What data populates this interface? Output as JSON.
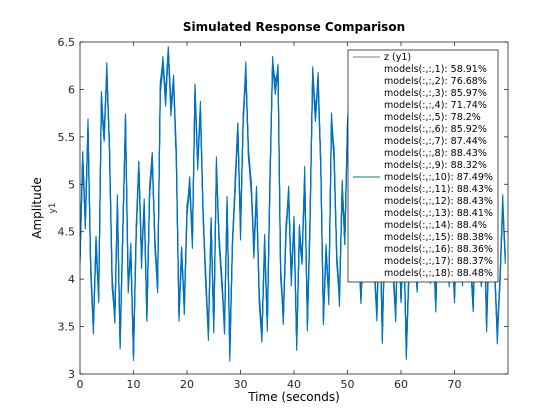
{
  "chart_data": {
    "type": "line",
    "title": "Simulated Response Comparison",
    "xlabel": "Time (seconds)",
    "ylabel": "Amplitude",
    "channel_label": "y1",
    "xlim": [
      0,
      80
    ],
    "ylim": [
      3,
      6.5
    ],
    "xticks": [
      "0",
      "10",
      "20",
      "30",
      "40",
      "50",
      "60",
      "70"
    ],
    "xtick_values": [
      0,
      10,
      20,
      30,
      40,
      50,
      60,
      70
    ],
    "yticks": [
      "3",
      "3.5",
      "4",
      "4.5",
      "5",
      "5.5",
      "6",
      "6.5"
    ],
    "ytick_values": [
      3,
      3.5,
      4,
      4.5,
      5,
      5.5,
      6,
      6.5
    ],
    "grid": false,
    "legend_position": "top-right",
    "colors": {
      "measured": "#808080",
      "models": "#0072BD",
      "highlight": "#007A7A"
    },
    "measured_name": "z (y1)",
    "series": [
      {
        "name": "models(:,:,1): 58.91%"
      },
      {
        "name": "models(:,:,2): 76.68%"
      },
      {
        "name": "models(:,:,3): 85.97%"
      },
      {
        "name": "models(:,:,4): 71.74%"
      },
      {
        "name": "models(:,:,5): 78.2%"
      },
      {
        "name": "models(:,:,6): 85.92%"
      },
      {
        "name": "models(:,:,7): 87.44%"
      },
      {
        "name": "models(:,:,8): 88.43%"
      },
      {
        "name": "models(:,:,9): 88.32%"
      },
      {
        "name": "models(:,:,10): 87.49%"
      },
      {
        "name": "models(:,:,11): 88.43%"
      },
      {
        "name": "models(:,:,12): 88.43%"
      },
      {
        "name": "models(:,:,13): 88.41%"
      },
      {
        "name": "models(:,:,14): 88.4%"
      },
      {
        "name": "models(:,:,15): 88.38%"
      },
      {
        "name": "models(:,:,16): 88.36%"
      },
      {
        "name": "models(:,:,17): 88.37%"
      },
      {
        "name": "models(:,:,18): 88.48%"
      }
    ],
    "highlight_index": 9,
    "response_x": [
      0,
      0.5,
      1,
      1.5,
      2,
      2.5,
      3,
      3.5,
      4,
      4.5,
      5,
      5.5,
      6,
      6.5,
      7,
      7.5,
      8,
      8.5,
      9,
      9.5,
      10,
      10.5,
      11,
      11.5,
      12,
      12.5,
      13,
      13.5,
      14,
      14.5,
      15,
      15.5,
      16,
      16.5,
      17,
      17.5,
      18,
      18.5,
      19,
      19.5,
      20,
      20.5,
      21,
      21.5,
      22,
      22.5,
      23,
      23.5,
      24,
      24.5,
      25,
      25.5,
      26,
      26.5,
      27,
      27.5,
      28,
      28.5,
      29,
      29.5,
      30,
      30.5,
      31,
      31.5,
      32,
      32.5,
      33,
      33.5,
      34,
      34.5,
      35,
      35.5,
      36,
      36.5,
      37,
      37.5,
      38,
      38.5,
      39,
      39.5,
      40,
      40.5,
      41,
      41.5,
      42,
      42.5,
      43,
      43.5,
      44,
      44.5,
      45,
      45.5,
      46,
      46.5,
      47,
      47.5,
      48,
      48.5,
      49,
      49.5,
      50,
      50.5,
      51,
      51.5,
      52,
      52.5,
      53,
      53.5,
      54,
      54.5,
      55,
      55.5,
      56,
      56.5,
      57,
      57.5,
      58,
      58.5,
      59,
      59.5,
      60,
      60.5,
      61,
      61.5,
      62,
      62.5,
      63,
      63.5,
      64,
      64.5,
      65,
      65.5,
      66,
      66.5,
      67,
      67.5,
      68,
      68.5,
      69,
      69.5,
      70,
      70.5,
      71,
      71.5,
      72,
      72.5,
      73,
      73.5,
      74,
      74.5,
      75,
      75.5,
      76,
      76.5,
      77,
      77.5,
      78,
      78.5,
      79,
      79.5
    ],
    "response_y": [
      4.2,
      5.3,
      4.6,
      5.6,
      4.1,
      3.5,
      4.4,
      3.8,
      5.9,
      5.5,
      6.2,
      5.4,
      4.0,
      3.6,
      4.8,
      3.3,
      4.5,
      5.7,
      3.9,
      4.3,
      3.2,
      4.5,
      5.2,
      4.2,
      4.8,
      3.6,
      4.9,
      5.3,
      4.4,
      3.9,
      6.0,
      6.3,
      5.9,
      6.4,
      5.8,
      6.1,
      5.3,
      3.6,
      4.3,
      3.7,
      4.7,
      5.0,
      4.4,
      6.0,
      5.2,
      5.8,
      4.7,
      4.0,
      3.4,
      4.6,
      3.5,
      5.2,
      4.4,
      4.0,
      3.5,
      4.8,
      3.2,
      4.4,
      5.0,
      5.6,
      4.5,
      5.7,
      6.2,
      5.3,
      5.0,
      4.3,
      4.9,
      3.8,
      3.4,
      4.4,
      3.5,
      5.0,
      6.3,
      6.0,
      6.2,
      4.1,
      3.6,
      4.5,
      4.9,
      4.0,
      4.6,
      3.3,
      4.5,
      4.2,
      5.1,
      3.5,
      4.6,
      6.2,
      5.7,
      6.1,
      5.2,
      3.6,
      4.3,
      3.8,
      5.7,
      5.3,
      4.2,
      3.8,
      5.0,
      4.4,
      5.6,
      6.0,
      5.3,
      5.6,
      4.5,
      3.8,
      4.4,
      4.9,
      4.3,
      5.0,
      4.1,
      3.6,
      4.8,
      3.4,
      4.5,
      4.2,
      5.4,
      4.1,
      3.6,
      4.7,
      3.8,
      4.5,
      3.2,
      4.1,
      4.9,
      4.4,
      3.9,
      4.8,
      5.0,
      4.3,
      5.1,
      4.0,
      4.4,
      3.7,
      4.7,
      4.3,
      5.2,
      4.6,
      4.0,
      4.4,
      3.8,
      4.6,
      5.0,
      4.0,
      5.1,
      4.6,
      4.2,
      3.7,
      4.9,
      4.4,
      4.0,
      4.7,
      3.5,
      4.5,
      5.0,
      4.1,
      3.4,
      4.0,
      4.8,
      4.2
    ]
  }
}
